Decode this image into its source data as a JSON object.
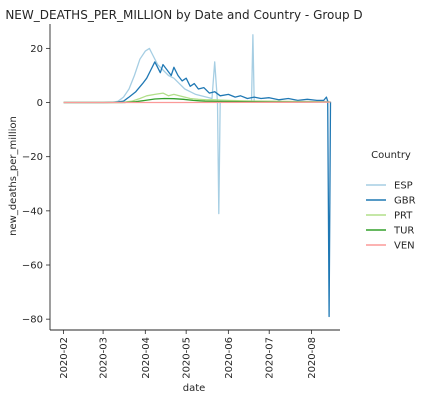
{
  "chart_data": {
    "type": "line",
    "title": "NEW_DEATHS_PER_MILLION by Date and Country - Group D",
    "xlabel": "date",
    "ylabel": "new_deaths_per_million",
    "xlim": [
      "2020-01-22",
      "2020-08-22"
    ],
    "ylim": [
      -84,
      29
    ],
    "x_ticks": [
      "2020-02",
      "2020-03",
      "2020-04",
      "2020-05",
      "2020-06",
      "2020-07",
      "2020-08"
    ],
    "y_ticks": [
      20,
      0,
      -20,
      -40,
      -60,
      -80
    ],
    "grid": false,
    "legend": {
      "title": "Country",
      "placement": "right"
    },
    "series": [
      {
        "name": "ESP",
        "color": "#a6cee3",
        "points": [
          [
            "2020-02-01",
            0
          ],
          [
            "2020-03-01",
            0
          ],
          [
            "2020-03-08",
            0.1
          ],
          [
            "2020-03-12",
            0.5
          ],
          [
            "2020-03-16",
            2
          ],
          [
            "2020-03-20",
            5
          ],
          [
            "2020-03-24",
            10
          ],
          [
            "2020-03-28",
            16
          ],
          [
            "2020-04-01",
            19
          ],
          [
            "2020-04-04",
            20
          ],
          [
            "2020-04-07",
            17
          ],
          [
            "2020-04-10",
            14
          ],
          [
            "2020-04-14",
            12
          ],
          [
            "2020-04-18",
            10
          ],
          [
            "2020-04-22",
            9
          ],
          [
            "2020-04-26",
            7
          ],
          [
            "2020-04-30",
            5
          ],
          [
            "2020-05-04",
            4
          ],
          [
            "2020-05-08",
            3
          ],
          [
            "2020-05-12",
            2.5
          ],
          [
            "2020-05-16",
            2
          ],
          [
            "2020-05-20",
            1.5
          ],
          [
            "2020-05-22",
            15
          ],
          [
            "2020-05-24",
            0
          ],
          [
            "2020-05-25",
            -41
          ],
          [
            "2020-05-26",
            0.5
          ],
          [
            "2020-06-01",
            0.3
          ],
          [
            "2020-06-10",
            0.3
          ],
          [
            "2020-06-18",
            0.2
          ],
          [
            "2020-06-19",
            25
          ],
          [
            "2020-06-20",
            0.2
          ],
          [
            "2020-07-01",
            0.1
          ],
          [
            "2020-07-15",
            0.1
          ],
          [
            "2020-08-01",
            0.2
          ],
          [
            "2020-08-14",
            0.4
          ]
        ]
      },
      {
        "name": "GBR",
        "color": "#1f78b4",
        "points": [
          [
            "2020-02-01",
            0
          ],
          [
            "2020-03-01",
            0
          ],
          [
            "2020-03-10",
            0.1
          ],
          [
            "2020-03-16",
            0.5
          ],
          [
            "2020-03-20",
            2
          ],
          [
            "2020-03-25",
            4
          ],
          [
            "2020-03-30",
            7
          ],
          [
            "2020-04-02",
            9
          ],
          [
            "2020-04-05",
            12
          ],
          [
            "2020-04-08",
            15
          ],
          [
            "2020-04-10",
            13
          ],
          [
            "2020-04-12",
            11
          ],
          [
            "2020-04-14",
            14
          ],
          [
            "2020-04-17",
            12
          ],
          [
            "2020-04-20",
            10
          ],
          [
            "2020-04-22",
            13
          ],
          [
            "2020-04-25",
            10
          ],
          [
            "2020-04-28",
            8
          ],
          [
            "2020-05-01",
            9
          ],
          [
            "2020-05-04",
            6
          ],
          [
            "2020-05-07",
            7
          ],
          [
            "2020-05-10",
            5
          ],
          [
            "2020-05-14",
            5.5
          ],
          [
            "2020-05-18",
            3.5
          ],
          [
            "2020-05-22",
            4
          ],
          [
            "2020-05-26",
            2.5
          ],
          [
            "2020-06-01",
            3
          ],
          [
            "2020-06-06",
            2
          ],
          [
            "2020-06-10",
            2.5
          ],
          [
            "2020-06-15",
            1.5
          ],
          [
            "2020-06-20",
            2
          ],
          [
            "2020-06-25",
            1.5
          ],
          [
            "2020-07-01",
            1.8
          ],
          [
            "2020-07-08",
            1
          ],
          [
            "2020-07-15",
            1.5
          ],
          [
            "2020-07-22",
            0.8
          ],
          [
            "2020-07-29",
            1.2
          ],
          [
            "2020-08-05",
            0.8
          ],
          [
            "2020-08-10",
            0.8
          ],
          [
            "2020-08-12",
            2
          ],
          [
            "2020-08-13",
            0.5
          ],
          [
            "2020-08-14",
            -79
          ],
          [
            "2020-08-15",
            0.3
          ]
        ]
      },
      {
        "name": "PRT",
        "color": "#b2df8a",
        "points": [
          [
            "2020-02-01",
            0
          ],
          [
            "2020-03-15",
            0
          ],
          [
            "2020-03-22",
            0.5
          ],
          [
            "2020-03-28",
            1.5
          ],
          [
            "2020-04-02",
            2.5
          ],
          [
            "2020-04-08",
            3
          ],
          [
            "2020-04-14",
            3.5
          ],
          [
            "2020-04-18",
            2.5
          ],
          [
            "2020-04-22",
            3
          ],
          [
            "2020-04-26",
            2.5
          ],
          [
            "2020-04-30",
            2
          ],
          [
            "2020-05-04",
            1.5
          ],
          [
            "2020-05-10",
            1.2
          ],
          [
            "2020-05-16",
            1
          ],
          [
            "2020-05-22",
            1
          ],
          [
            "2020-06-01",
            0.8
          ],
          [
            "2020-06-15",
            0.6
          ],
          [
            "2020-07-01",
            0.5
          ],
          [
            "2020-07-15",
            0.4
          ],
          [
            "2020-08-01",
            0.3
          ],
          [
            "2020-08-15",
            0.2
          ]
        ]
      },
      {
        "name": "TUR",
        "color": "#33a02c",
        "points": [
          [
            "2020-02-01",
            0
          ],
          [
            "2020-03-17",
            0
          ],
          [
            "2020-03-25",
            0.3
          ],
          [
            "2020-04-01",
            0.8
          ],
          [
            "2020-04-08",
            1.3
          ],
          [
            "2020-04-15",
            1.5
          ],
          [
            "2020-04-22",
            1.4
          ],
          [
            "2020-04-29",
            1.2
          ],
          [
            "2020-05-06",
            0.8
          ],
          [
            "2020-05-15",
            0.5
          ],
          [
            "2020-05-25",
            0.4
          ],
          [
            "2020-06-10",
            0.3
          ],
          [
            "2020-07-01",
            0.25
          ],
          [
            "2020-07-20",
            0.2
          ],
          [
            "2020-08-15",
            0.2
          ]
        ]
      },
      {
        "name": "VEN",
        "color": "#fb9a99",
        "points": [
          [
            "2020-02-01",
            0
          ],
          [
            "2020-03-20",
            0
          ],
          [
            "2020-05-01",
            0.02
          ],
          [
            "2020-06-15",
            0.05
          ],
          [
            "2020-07-15",
            0.1
          ],
          [
            "2020-08-15",
            0.15
          ]
        ]
      }
    ]
  }
}
